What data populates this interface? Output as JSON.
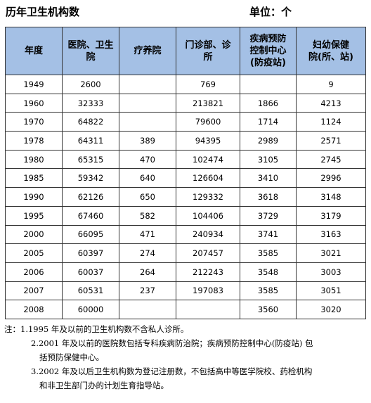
{
  "header": {
    "title": "历年卫生机构数",
    "unit": "单位：个"
  },
  "table": {
    "columns": [
      "年度",
      "医院、卫生院",
      "疗养院",
      "门诊部、诊所",
      "疾病预防控制中心(防疫站)",
      "妇幼保健院(所、站)"
    ],
    "column_lines": [
      [
        "年度"
      ],
      [
        "医院、卫生",
        "院"
      ],
      [
        "疗养院"
      ],
      [
        "门诊部、诊",
        "所"
      ],
      [
        "疾病预防",
        "控制中心",
        "(防疫站)"
      ],
      [
        "妇幼保健",
        "院(所、站)"
      ]
    ],
    "rows": [
      [
        "1949",
        "2600",
        "",
        "769",
        "",
        "9"
      ],
      [
        "1960",
        "32333",
        "",
        "213821",
        "1866",
        "4213"
      ],
      [
        "1970",
        "64822",
        "",
        "79600",
        "1714",
        "1124"
      ],
      [
        "1978",
        "64311",
        "389",
        "94395",
        "2989",
        "2571"
      ],
      [
        "1980",
        "65315",
        "470",
        "102474",
        "3105",
        "2745"
      ],
      [
        "1985",
        "59342",
        "640",
        "126604",
        "3410",
        "2996"
      ],
      [
        "1990",
        "62126",
        "650",
        "129332",
        "3618",
        "3148"
      ],
      [
        "1995",
        "67460",
        "582",
        "104406",
        "3729",
        "3179"
      ],
      [
        "2000",
        "66095",
        "471",
        "240934",
        "3741",
        "3163"
      ],
      [
        "2005",
        "60397",
        "274",
        "207457",
        "3585",
        "3021"
      ],
      [
        "2006",
        "60037",
        "264",
        "212243",
        "3548",
        "3003"
      ],
      [
        "2007",
        "60531",
        "237",
        "197083",
        "3585",
        "3051"
      ],
      [
        "2008",
        "60000",
        "",
        "",
        "3560",
        "3020"
      ]
    ]
  },
  "notes": {
    "label": "注：",
    "n1": "1.1995 年及以前的卫生机构数不含私人诊所。",
    "n2a": "2.2001 年及以前的医院数包括专科疾病防治院；疾病预防控制中心(防疫站) 包",
    "n2b": "括预防保健中心。",
    "n3a": "3.2002 年及以后卫生机构数为登记注册数，不包括高中等医学院校、药检机构",
    "n3b": "和非卫生部门办的计划生育指导站。"
  },
  "colors": {
    "header_bg": "#a4c0e5",
    "border": "#333333"
  }
}
